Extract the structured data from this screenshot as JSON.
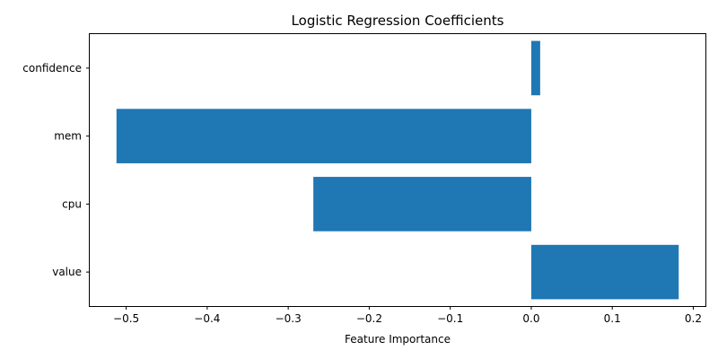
{
  "chart_data": {
    "type": "bar",
    "orientation": "horizontal",
    "title": "Logistic Regression Coefficients",
    "xlabel": "Feature Importance",
    "ylabel": "",
    "categories": [
      "value",
      "cpu",
      "mem",
      "confidence"
    ],
    "values": [
      0.182,
      -0.269,
      -0.512,
      0.011
    ],
    "xlim": [
      -0.545,
      0.215
    ],
    "xticks": [
      -0.5,
      -0.4,
      -0.3,
      -0.2,
      -0.1,
      0.0,
      0.1,
      0.2
    ],
    "xtick_labels": [
      "−0.5",
      "−0.4",
      "−0.3",
      "−0.2",
      "−0.1",
      "0.0",
      "0.1",
      "0.2"
    ],
    "bar_color": "#1f77b4",
    "grid": false,
    "legend": "none"
  }
}
